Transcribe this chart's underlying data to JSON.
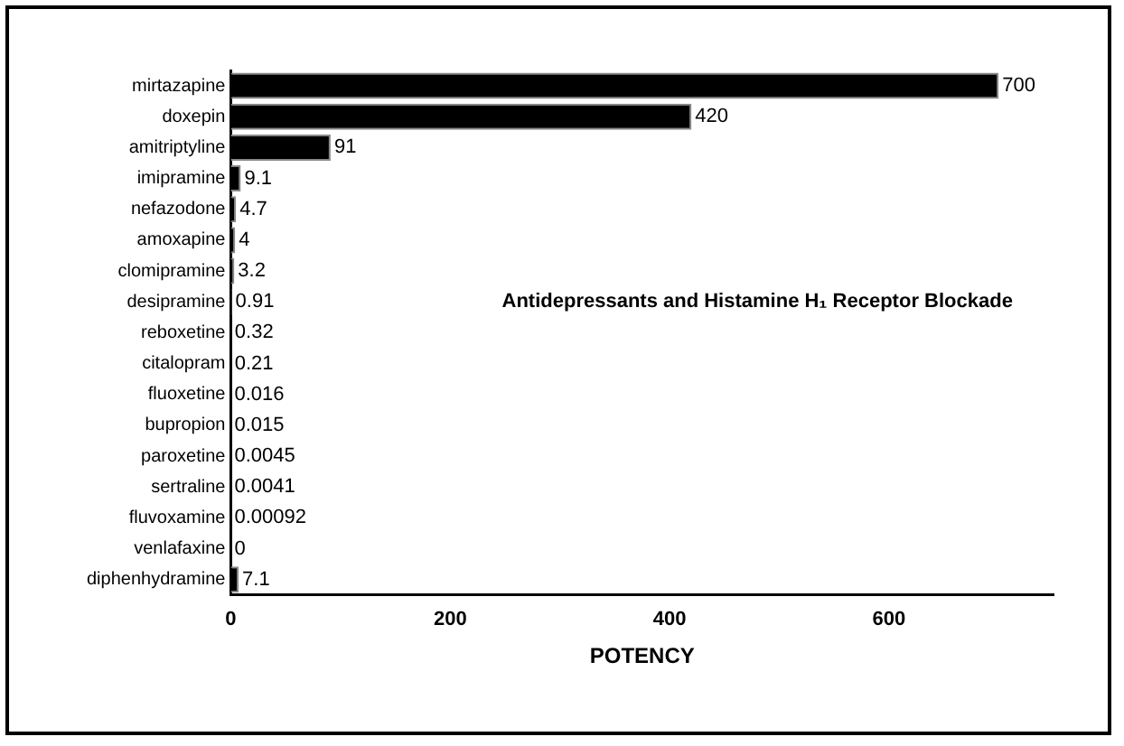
{
  "chart_data": {
    "type": "bar",
    "orientation": "horizontal",
    "xlabel": "POTENCY",
    "categories": [
      "mirtazapine",
      "doxepin",
      "amitriptyline",
      "imipramine",
      "nefazodone",
      "amoxapine",
      "clomipramine",
      "desipramine",
      "reboxetine",
      "citalopram",
      "fluoxetine",
      "bupropion",
      "paroxetine",
      "sertraline",
      "fluvoxamine",
      "venlafaxine",
      "diphenhydramine"
    ],
    "values": [
      700,
      420,
      91,
      9.1,
      4.7,
      4,
      3.2,
      0.91,
      0.32,
      0.21,
      0.016,
      0.015,
      0.0045,
      0.0041,
      0.00092,
      0,
      7.1
    ],
    "color": "#000000",
    "xlim": [
      0,
      750
    ],
    "xticks": [
      0,
      200,
      400,
      600
    ],
    "grid": false,
    "legend": false,
    "data_labels": true,
    "annotations": [
      "Antidepressants and Histamine H₁ Receptor Blockade"
    ]
  }
}
